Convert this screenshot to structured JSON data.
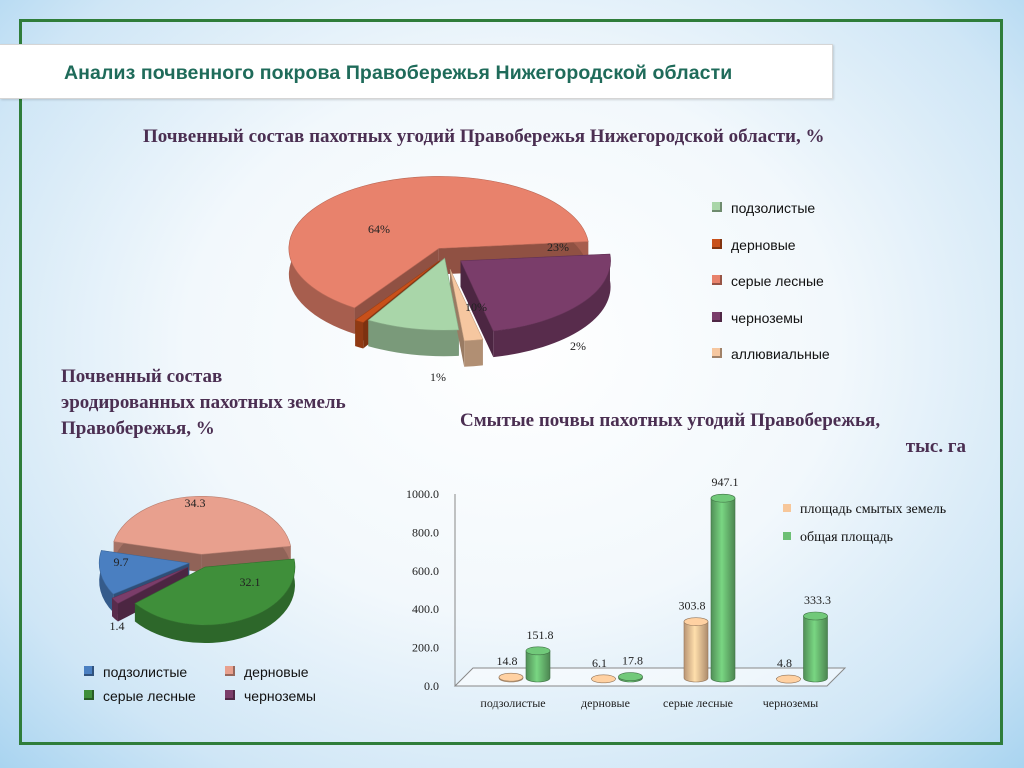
{
  "page": {
    "title": "Анализ почвенного покрова Правобережья Нижегородской области"
  },
  "colors": {
    "podzolistye": "#a9d6a9",
    "dernovye": "#c8501a",
    "serye_lesnye": "#e8826c",
    "chernozemy": "#7a3d6a",
    "alluvialnye": "#f6c7a0",
    "eroded_podzolistye": "#4a7fc1",
    "eroded_dernovye": "#e8a08e",
    "eroded_serye_lesnye": "#3f8f3a",
    "eroded_chernozemy": "#7b3d6a",
    "bar_smytye": "#f7c79a",
    "bar_obshchaya": "#6cbf74"
  },
  "chart_data": [
    {
      "type": "pie",
      "title": "Почвенный состав пахотных угодий Правобережья Нижегородской области, %",
      "slices": [
        {
          "name": "подзолистые",
          "value": 10,
          "label": "10%"
        },
        {
          "name": "дерновые",
          "value": 1,
          "label": "1%"
        },
        {
          "name": "серые лесные",
          "value": 64,
          "label": "64%"
        },
        {
          "name": "черноземы",
          "value": 23,
          "label": "23%"
        },
        {
          "name": "аллювиальные",
          "value": 2,
          "label": "2%"
        }
      ],
      "legend": [
        "подзолистые",
        "дерновые",
        "серые лесные",
        "черноземы",
        "аллювиальные"
      ],
      "legend_position": "right"
    },
    {
      "type": "pie",
      "title": "Почвенный состав эродированных пахотных земель Правобережья, %",
      "title_lines": [
        "Почвенный состав",
        "эродированных пахотных земель",
        "Правобережья, %"
      ],
      "slices": [
        {
          "name": "подзолистые",
          "value": 9.7,
          "label": "9.7"
        },
        {
          "name": "дерновые",
          "value": 34.3,
          "label": "34.3"
        },
        {
          "name": "серые лесные",
          "value": 32.1,
          "label": "32.1"
        },
        {
          "name": "черноземы",
          "value": 1.4,
          "label": "1.4"
        }
      ],
      "legend": [
        "подзолистые",
        "дерновые",
        "серые лесные",
        "черноземы"
      ],
      "legend_position": "bottom"
    },
    {
      "type": "bar",
      "title": "Смытые почвы пахотных угодий Правобережья, тыс. га",
      "title_lines": [
        "Смытые почвы пахотных угодий Правобережья,",
        "тыс. га"
      ],
      "categories": [
        "подзолистые",
        "дерновые",
        "серые лесные",
        "черноземы"
      ],
      "series": [
        {
          "name": "площадь смытых земель",
          "values": [
            14.8,
            6.1,
            303.8,
            4.8
          ],
          "labels": [
            "14.8",
            "6.1",
            "303.8",
            "4.8"
          ]
        },
        {
          "name": "общая площадь",
          "values": [
            151.8,
            17.8,
            947.1,
            333.3
          ],
          "labels": [
            "151.8",
            "17.8",
            "947.1",
            "333.3"
          ]
        }
      ],
      "ylim": [
        0,
        1000
      ],
      "yticks": [
        0,
        200,
        400,
        600,
        800,
        1000
      ],
      "ytick_labels": [
        "0.0",
        "200.0",
        "400.0",
        "600.0",
        "800.0",
        "1000.0"
      ],
      "legend_position": "top-right"
    }
  ]
}
